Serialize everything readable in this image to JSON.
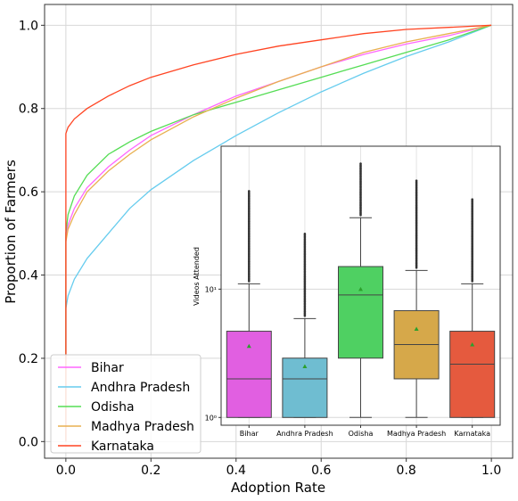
{
  "chart_data": [
    {
      "type": "line",
      "xlabel": "Adoption Rate",
      "ylabel": "Proportion of Farmers",
      "xlim": [
        -0.05,
        1.05
      ],
      "ylim": [
        -0.04,
        1.05
      ],
      "xticks": [
        "0.0",
        "0.2",
        "0.4",
        "0.6",
        "0.8",
        "1.0"
      ],
      "yticks": [
        "0.0",
        "0.2",
        "0.4",
        "0.6",
        "0.8",
        "1.0"
      ],
      "grid": true,
      "legend_position": "lower-left",
      "series": [
        {
          "name": "Bihar",
          "color": "#ff66ff",
          "x": [
            0,
            0,
            0.005,
            0.02,
            0.05,
            0.1,
            0.15,
            0.2,
            0.3,
            0.4,
            0.5,
            0.6,
            0.7,
            0.8,
            0.9,
            1.0
          ],
          "y": [
            0,
            0.49,
            0.52,
            0.56,
            0.61,
            0.66,
            0.7,
            0.735,
            0.785,
            0.83,
            0.865,
            0.9,
            0.93,
            0.955,
            0.975,
            1.0
          ]
        },
        {
          "name": "Andhra Pradesh",
          "color": "#66ccee",
          "x": [
            0,
            0,
            0.005,
            0.02,
            0.05,
            0.1,
            0.15,
            0.2,
            0.3,
            0.4,
            0.5,
            0.6,
            0.7,
            0.8,
            0.9,
            1.0
          ],
          "y": [
            0,
            0.32,
            0.35,
            0.39,
            0.44,
            0.5,
            0.56,
            0.605,
            0.675,
            0.735,
            0.79,
            0.84,
            0.885,
            0.925,
            0.96,
            1.0
          ]
        },
        {
          "name": "Odisha",
          "color": "#55dd55",
          "x": [
            0,
            0,
            0.005,
            0.02,
            0.05,
            0.1,
            0.15,
            0.2,
            0.3,
            0.4,
            0.5,
            0.6,
            0.7,
            0.8,
            0.9,
            1.0
          ],
          "y": [
            0,
            0.5,
            0.545,
            0.59,
            0.64,
            0.69,
            0.72,
            0.745,
            0.785,
            0.815,
            0.845,
            0.875,
            0.905,
            0.935,
            0.965,
            1.0
          ]
        },
        {
          "name": "Madhya Pradesh",
          "color": "#e8b050",
          "x": [
            0,
            0,
            0.005,
            0.02,
            0.05,
            0.1,
            0.15,
            0.2,
            0.3,
            0.4,
            0.5,
            0.6,
            0.7,
            0.8,
            0.9,
            1.0
          ],
          "y": [
            0,
            0.48,
            0.51,
            0.545,
            0.6,
            0.65,
            0.69,
            0.725,
            0.78,
            0.825,
            0.865,
            0.9,
            0.935,
            0.96,
            0.98,
            1.0
          ]
        },
        {
          "name": "Karnataka",
          "color": "#ff4422",
          "x": [
            0,
            0,
            0.005,
            0.02,
            0.05,
            0.1,
            0.15,
            0.2,
            0.3,
            0.4,
            0.5,
            0.6,
            0.7,
            0.8,
            0.9,
            1.0
          ],
          "y": [
            0,
            0.74,
            0.755,
            0.775,
            0.8,
            0.83,
            0.855,
            0.875,
            0.905,
            0.93,
            0.95,
            0.965,
            0.98,
            0.99,
            0.995,
            1.0
          ]
        }
      ]
    },
    {
      "type": "box",
      "ylabel": "Videos Attended",
      "yscale": "log",
      "ytick_labels": [
        "10⁰",
        "10¹"
      ],
      "categories": [
        "Bihar",
        "Andhra Pradesh",
        "Odisha",
        "Madhya Pradesh",
        "Karnataka"
      ],
      "boxes": [
        {
          "category": "Bihar",
          "color": "#e15fe1",
          "whisker_low": 1,
          "q1": 1,
          "median": 2,
          "q3": 4.7,
          "whisker_high": 11,
          "mean": 3.6,
          "flier_max": 58
        },
        {
          "category": "Andhra Pradesh",
          "color": "#6fbdd1",
          "whisker_low": 1,
          "q1": 1,
          "median": 2,
          "q3": 2.9,
          "whisker_high": 5.9,
          "mean": 2.5,
          "flier_max": 27
        },
        {
          "category": "Odisha",
          "color": "#4fd062",
          "whisker_low": 1,
          "q1": 2.9,
          "median": 9,
          "q3": 15,
          "whisker_high": 36,
          "mean": 10,
          "flier_max": 95
        },
        {
          "category": "Madhya Pradesh",
          "color": "#d6a84a",
          "whisker_low": 1,
          "q1": 2,
          "median": 3.7,
          "q3": 6.8,
          "whisker_high": 14,
          "mean": 4.9,
          "flier_max": 70
        },
        {
          "category": "Karnataka",
          "color": "#e55a3e",
          "whisker_low": 1,
          "q1": 1,
          "median": 2.6,
          "q3": 4.7,
          "whisker_high": 11,
          "mean": 3.7,
          "flier_max": 50
        }
      ]
    }
  ]
}
